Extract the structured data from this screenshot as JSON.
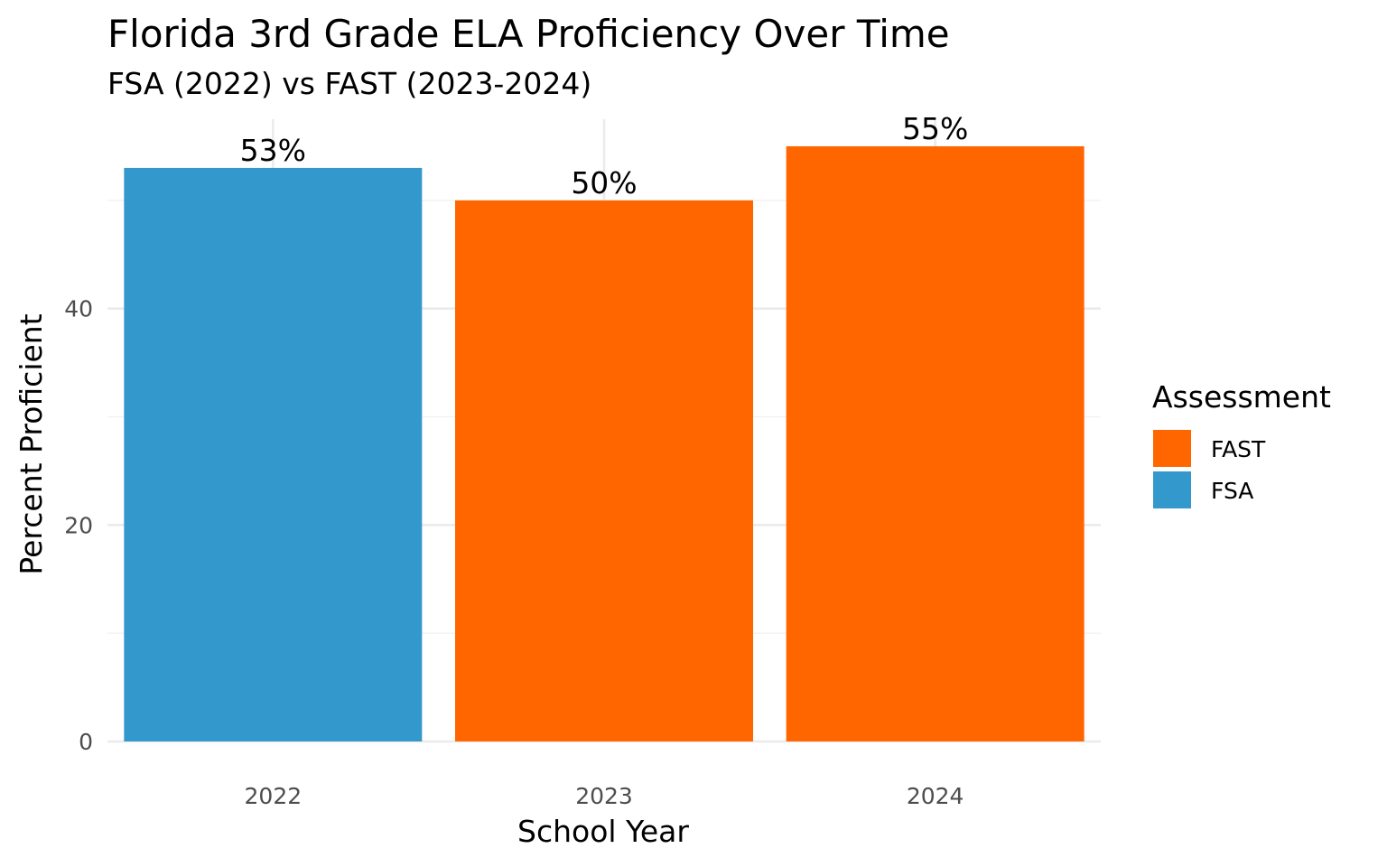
{
  "chart_data": {
    "type": "bar",
    "title": "Florida 3rd Grade ELA Proficiency Over Time",
    "subtitle": "FSA (2022) vs FAST (2023-2024)",
    "xlabel": "School Year",
    "ylabel": "Percent Proficient",
    "categories": [
      "2022",
      "2023",
      "2024"
    ],
    "values": [
      53,
      50,
      55
    ],
    "data_labels": [
      "53%",
      "50%",
      "55%"
    ],
    "bar_groups": [
      "FSA",
      "FAST",
      "FAST"
    ],
    "ylim": [
      0,
      57.5
    ],
    "y_ticks": [
      0,
      20,
      40
    ],
    "y_minor_ticks": [
      10,
      30,
      50
    ],
    "grid": true,
    "legend": {
      "title": "Assessment",
      "position": "right",
      "entries": [
        {
          "name": "FAST",
          "color": "#ff6600"
        },
        {
          "name": "FSA",
          "color": "#3399cc"
        }
      ]
    }
  }
}
